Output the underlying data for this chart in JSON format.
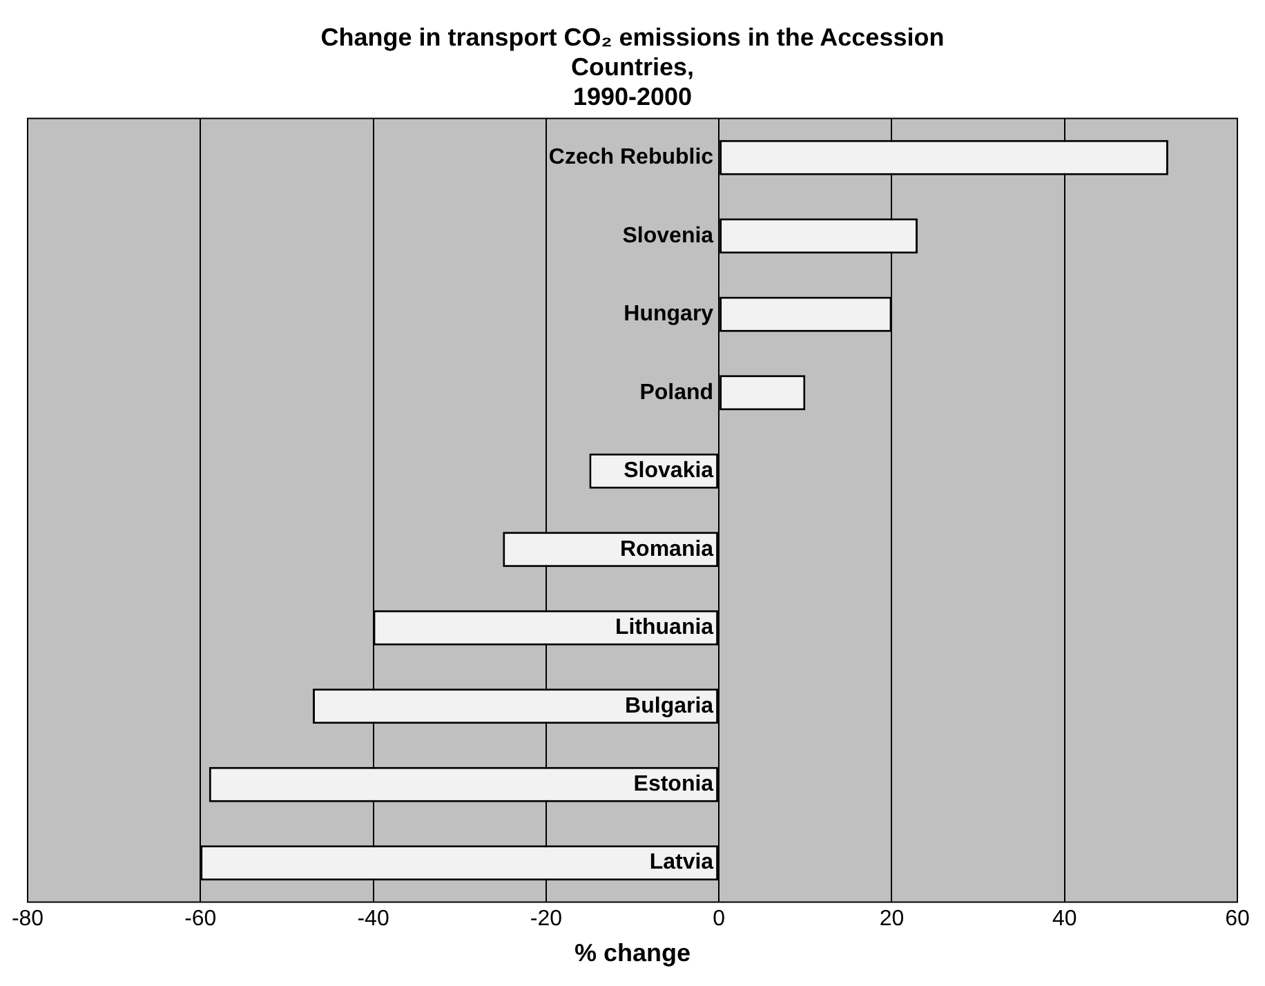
{
  "chart_data": {
    "type": "bar",
    "orientation": "horizontal",
    "title": "Change in transport CO₂ emissions in the Accession\nCountries,\n1990-2000",
    "xlabel": "% change",
    "categories": [
      "Czech Rebublic",
      "Slovenia",
      "Hungary",
      "Poland",
      "Slovakia",
      "Romania",
      "Lithuania",
      "Bulgaria",
      "Estonia",
      "Latvia"
    ],
    "values": [
      52,
      23,
      20,
      10,
      -15,
      -25,
      -40,
      -47,
      -59,
      -60
    ],
    "color": "#f2f2f2",
    "xlim": [
      -80,
      60
    ],
    "xticks": [
      -80,
      -60,
      -40,
      -20,
      0,
      20,
      40,
      60
    ],
    "grid": "x",
    "legend": false
  }
}
